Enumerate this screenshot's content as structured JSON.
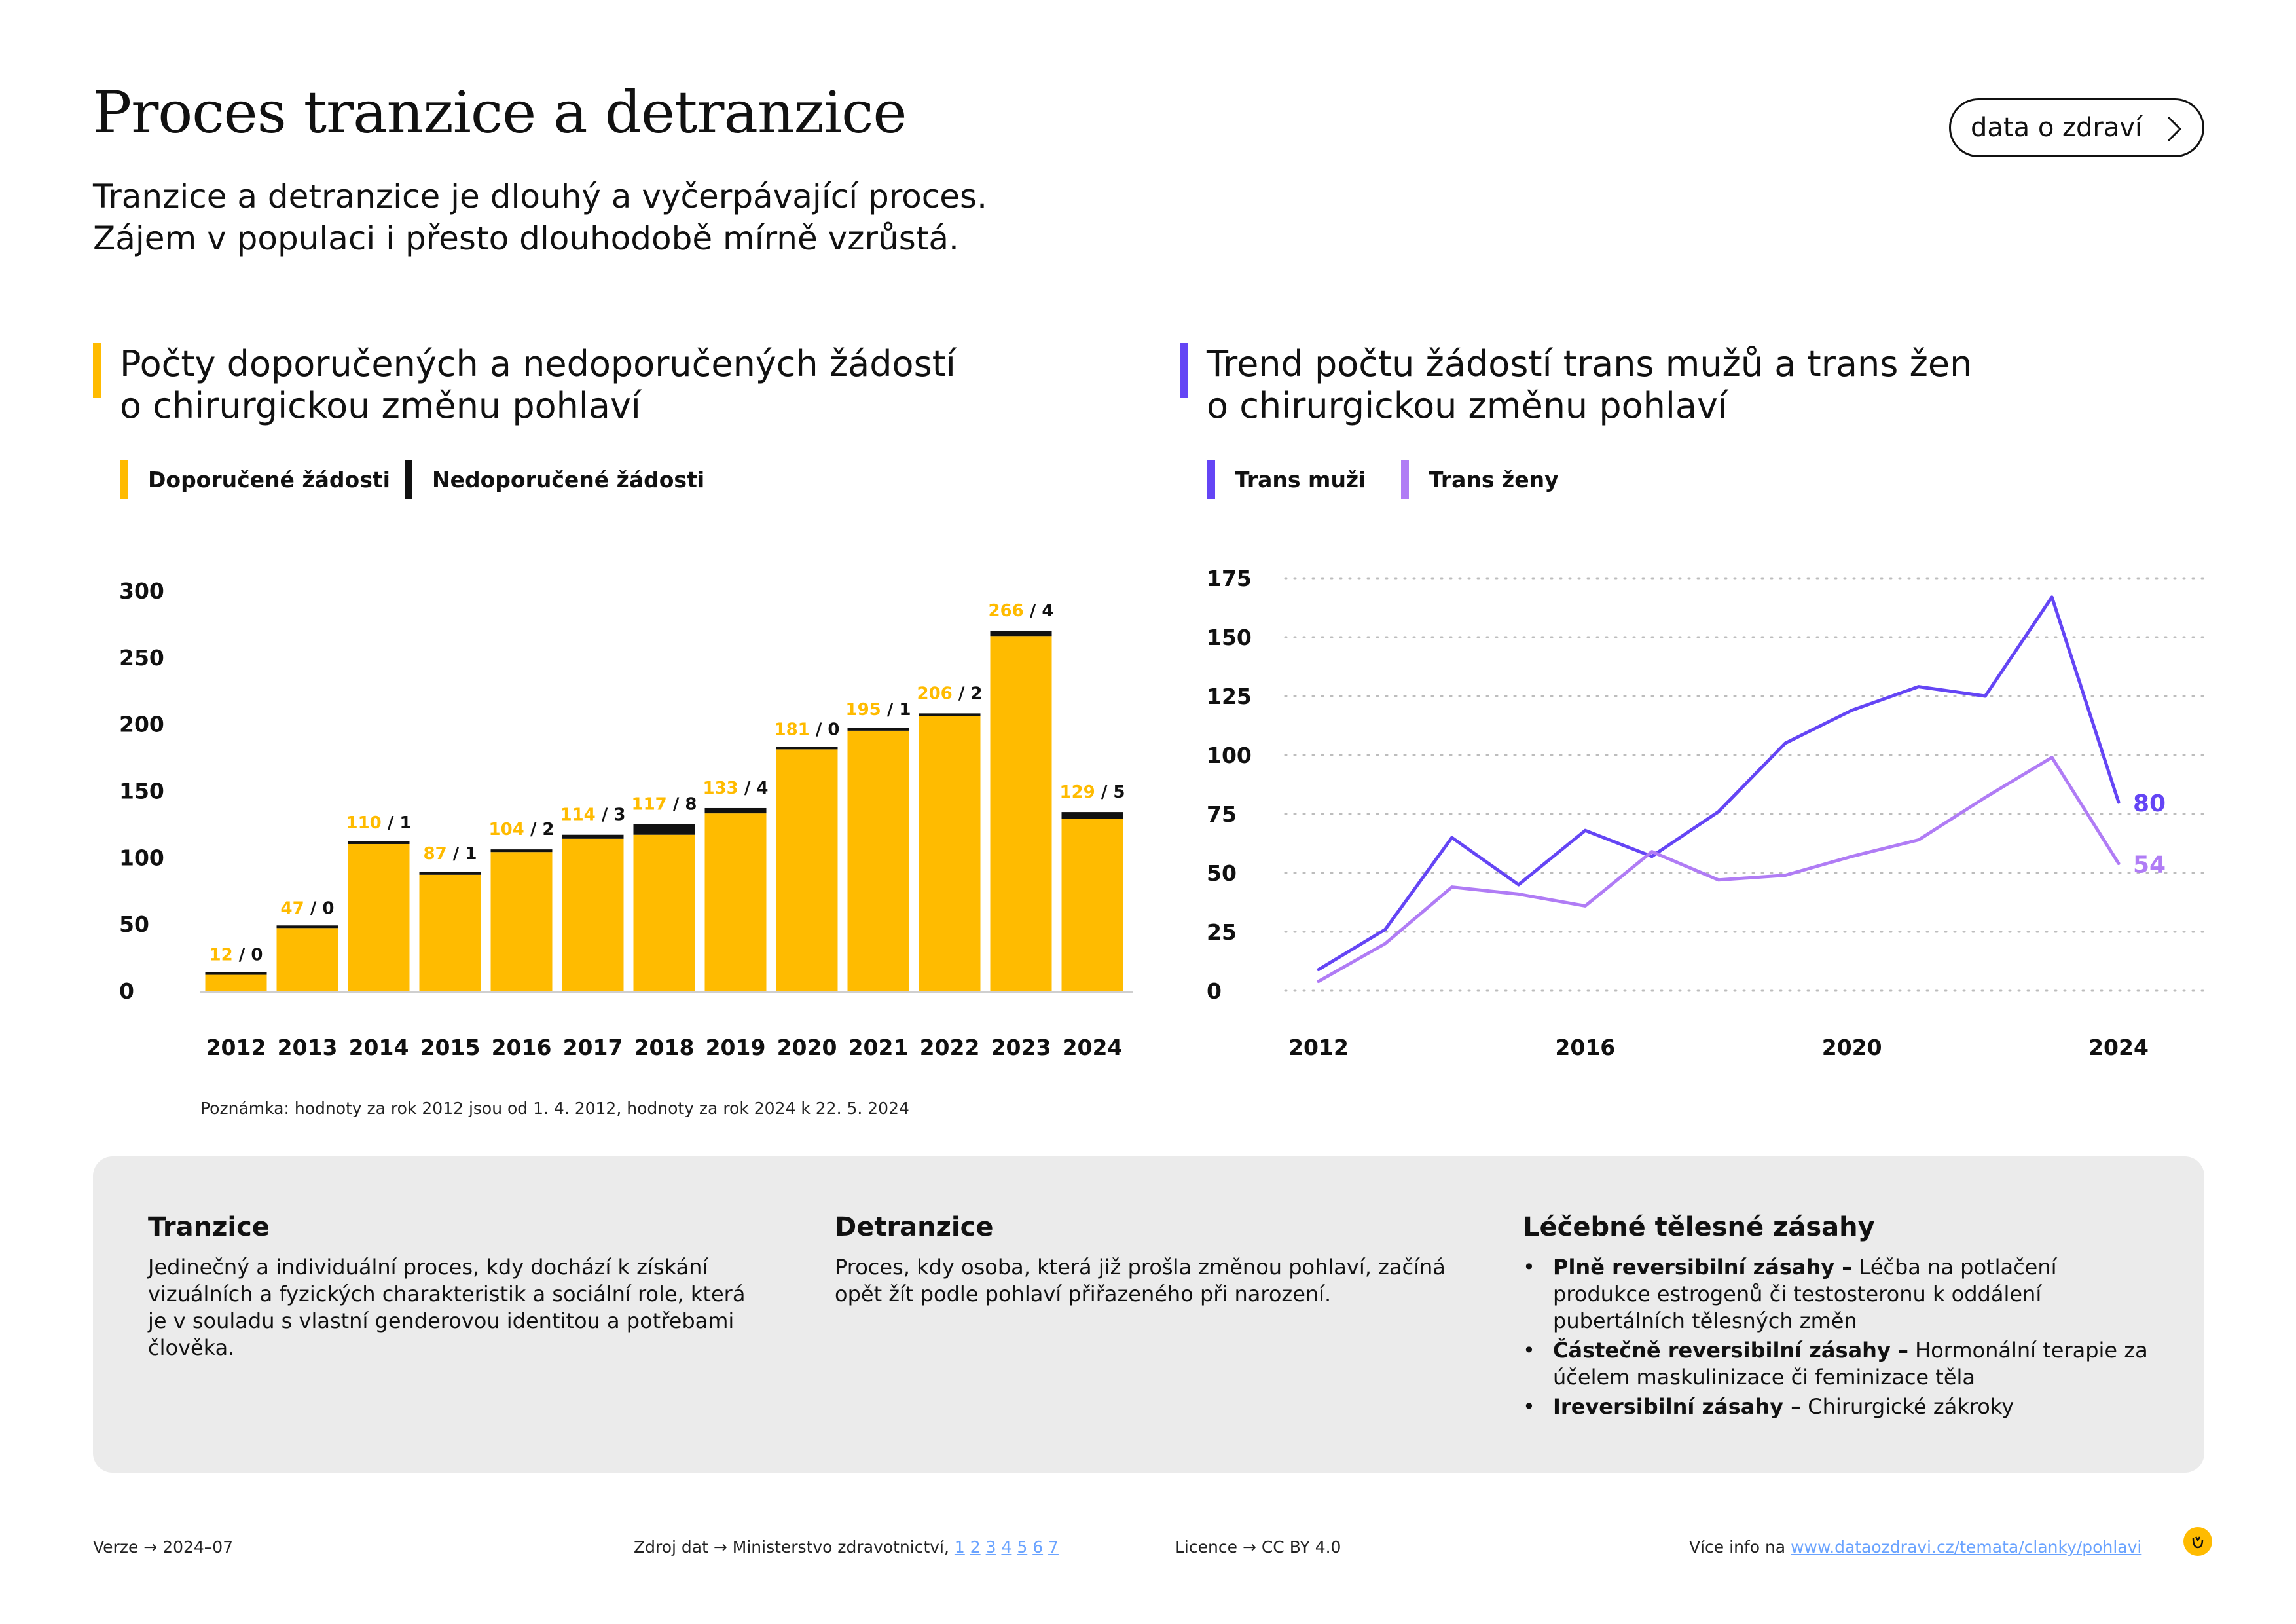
{
  "header": {
    "title": "Proces tranzice a detranzice",
    "subtitle_line1": "Tranzice a detranzice je dlouhý a vyčerpávající proces.",
    "subtitle_line2": "Zájem v populaci i přesto dlouhodobě mírně vzrůstá.",
    "button_label": "data o zdraví"
  },
  "colors": {
    "yellow": "#FFBB00",
    "black": "#111111",
    "trans_men": "#6445F5",
    "trans_women": "#B07CF5",
    "panel_bg": "#EBEBEB"
  },
  "chart_data": [
    {
      "type": "bar",
      "stacked": true,
      "title": "Počty doporučených a nedoporučených žádostí o chirurgickou změnu pohlaví",
      "title_line1": "Počty doporučených a nedoporučených žádostí",
      "title_line2": "o chirurgickou změnu pohlaví",
      "legend": [
        "Doporučené žádosti",
        "Nedoporučené žádosti"
      ],
      "legend_position": "top-left",
      "categories": [
        "2012",
        "2013",
        "2014",
        "2015",
        "2016",
        "2017",
        "2018",
        "2019",
        "2020",
        "2021",
        "2022",
        "2023",
        "2024"
      ],
      "series": [
        {
          "name": "Doporučené žádosti",
          "values": [
            12,
            47,
            110,
            87,
            104,
            114,
            117,
            133,
            181,
            195,
            206,
            266,
            129
          ]
        },
        {
          "name": "Nedoporučené žádosti",
          "values": [
            0,
            0,
            1,
            1,
            2,
            3,
            8,
            4,
            0,
            1,
            2,
            4,
            5
          ]
        }
      ],
      "yticks": [
        0,
        50,
        100,
        150,
        200,
        250,
        300
      ],
      "ylim": [
        0,
        300
      ],
      "grid": false,
      "note": "Poznámka: hodnoty za rok 2012 jsou od 1. 4. 2012, hodnoty za rok 2024 k 22. 5. 2024"
    },
    {
      "type": "line",
      "title": "Trend počtu žádostí trans mužů a trans žen o chirurgickou změnu pohlaví",
      "title_line1": "Trend počtu žádostí trans mužů a trans žen",
      "title_line2": "o chirurgickou změnu pohlaví",
      "legend": [
        "Trans muži",
        "Trans ženy"
      ],
      "legend_position": "top-left",
      "x": [
        2012,
        2013,
        2014,
        2015,
        2016,
        2017,
        2018,
        2019,
        2020,
        2021,
        2022,
        2023,
        2024
      ],
      "xticks": [
        2012,
        2016,
        2020,
        2024
      ],
      "series": [
        {
          "name": "Trans muži",
          "values": [
            9,
            26,
            65,
            45,
            68,
            57,
            76,
            105,
            119,
            129,
            125,
            167,
            80
          ],
          "end_label": "80"
        },
        {
          "name": "Trans ženy",
          "values": [
            4,
            20,
            44,
            41,
            36,
            59,
            47,
            49,
            57,
            64,
            82,
            99,
            54
          ],
          "end_label": "54"
        }
      ],
      "yticks": [
        0,
        25,
        50,
        75,
        100,
        125,
        150,
        175
      ],
      "ylim": [
        0,
        175
      ],
      "grid": true,
      "grid_style": "dotted"
    }
  ],
  "panel": {
    "col1": {
      "title": "Tranzice",
      "text": "Jedinečný a individuální proces, kdy dochází k získání vizuálních a fyzických charakteristik a sociální role, která je v souladu s vlastní genderovou identitou a potřebami člověka."
    },
    "col2": {
      "title": "Detranzice",
      "text": "Proces, kdy osoba, která již prošla změnou pohlaví, začíná opět žít podle pohlaví přiřazeného při narození."
    },
    "col3": {
      "title": "Léčebné tělesné zásahy",
      "bullet_glyph": "•",
      "items": [
        {
          "bold": "Plně reversibilní zásahy –",
          "text": " Léčba na potlačení produkce estrogenů či testosteronu k oddálení pubertálních tělesných změn"
        },
        {
          "bold": "Částečně reversibilní zásahy –",
          "text": " Hormonální terapie za účelem maskulinizace či feminizace těla"
        },
        {
          "bold": "Ireversibilní zásahy –",
          "text": " Chirurgické zákroky"
        }
      ]
    }
  },
  "footer": {
    "version_label": "Verze",
    "version_value": "2024–07",
    "source_label": "Zdroj dat",
    "source_value": "Ministerstvo zdravotnictví,",
    "source_links": [
      "1",
      "2",
      "3",
      "4",
      "5",
      "6",
      "7"
    ],
    "license_label": "Licence",
    "license_value": "CC BY 4.0",
    "more_label": "Více info na",
    "more_link": "www.dataozdravi.cz/temata/clanky/pohlavi",
    "arrow": "→"
  }
}
